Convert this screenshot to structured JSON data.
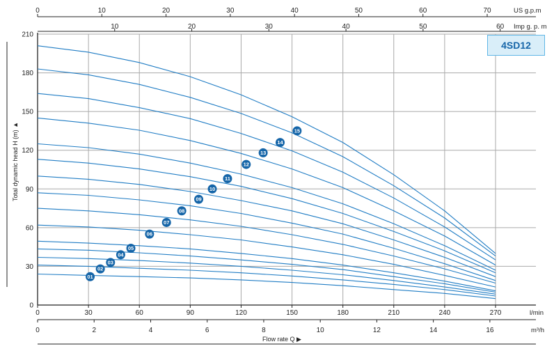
{
  "chart_data": {
    "type": "line",
    "model": "4SD12",
    "ylabel": "Total dynamic head H (m) ▲",
    "xlabel": "Flow rate Q ▶",
    "ylim": [
      0,
      210
    ],
    "y_ticks": [
      "0",
      "30",
      "60",
      "90",
      "120",
      "150",
      "180",
      "210"
    ],
    "x_axes": {
      "lmin": {
        "unit": "l/min",
        "range": [
          0,
          270
        ],
        "ticks": [
          "0",
          "30",
          "60",
          "90",
          "120",
          "150",
          "180",
          "210",
          "240",
          "270"
        ]
      },
      "m3h": {
        "unit": "m³/h",
        "range": [
          0,
          16.2
        ],
        "ticks": [
          "0",
          "2",
          "4",
          "6",
          "8",
          "10",
          "12",
          "14",
          "16"
        ]
      },
      "usgpm": {
        "unit": "US g.p.m",
        "range": [
          0,
          71.3
        ],
        "ticks": [
          "0",
          "10",
          "20",
          "30",
          "40",
          "50",
          "60",
          "70"
        ]
      },
      "impgpm": {
        "unit": "Imp g. p. m",
        "range": [
          0,
          59.4
        ],
        "ticks": [
          "10",
          "20",
          "30",
          "40",
          "50",
          "60"
        ]
      }
    },
    "grid": true,
    "series": [
      {
        "name": "01",
        "x": [
          0,
          30,
          60,
          90,
          120,
          150,
          180,
          210,
          240,
          270
        ],
        "y": [
          24,
          23,
          22,
          21,
          19.5,
          17.5,
          15,
          12,
          9,
          5
        ]
      },
      {
        "name": "02",
        "x": [
          0,
          30,
          60,
          90,
          120,
          150,
          180,
          210,
          240,
          270
        ],
        "y": [
          31,
          30,
          28.5,
          27,
          25,
          22.5,
          19.5,
          16,
          12,
          7
        ]
      },
      {
        "name": "03",
        "x": [
          0,
          30,
          60,
          90,
          120,
          150,
          180,
          210,
          240,
          270
        ],
        "y": [
          37,
          36,
          34.5,
          32.5,
          30,
          27,
          23.5,
          19,
          14,
          8.5
        ]
      },
      {
        "name": "04",
        "x": [
          0,
          30,
          60,
          90,
          120,
          150,
          180,
          210,
          240,
          270
        ],
        "y": [
          43.5,
          42.5,
          40.5,
          38,
          35,
          31.5,
          27.5,
          22,
          16.5,
          10
        ]
      },
      {
        "name": "05",
        "x": [
          0,
          30,
          60,
          90,
          120,
          150,
          180,
          210,
          240,
          270
        ],
        "y": [
          49.5,
          48,
          46,
          43.5,
          40,
          36,
          31,
          25,
          18.5,
          11
        ]
      },
      {
        "name": "06",
        "x": [
          0,
          30,
          60,
          90,
          120,
          150,
          180,
          210,
          240,
          270
        ],
        "y": [
          62,
          60.5,
          58,
          54.5,
          50.5,
          45,
          39,
          31.5,
          23,
          14
        ]
      },
      {
        "name": "07",
        "x": [
          0,
          30,
          60,
          90,
          120,
          150,
          180,
          210,
          240,
          270
        ],
        "y": [
          75,
          73,
          70,
          66,
          61,
          54.5,
          47,
          38,
          28,
          17
        ]
      },
      {
        "name": "08",
        "x": [
          0,
          30,
          60,
          90,
          120,
          150,
          180,
          210,
          240,
          270
        ],
        "y": [
          87,
          85,
          81.5,
          77,
          71,
          63.5,
          55,
          44,
          32,
          19
        ]
      },
      {
        "name": "09",
        "x": [
          0,
          30,
          60,
          90,
          120,
          150,
          180,
          210,
          240,
          270
        ],
        "y": [
          100,
          97.5,
          93.5,
          88,
          81,
          73,
          63,
          50.5,
          37,
          22
        ]
      },
      {
        "name": "10",
        "x": [
          0,
          30,
          60,
          90,
          120,
          150,
          180,
          210,
          240,
          270
        ],
        "y": [
          113,
          110,
          105.5,
          99.5,
          92,
          82.5,
          71,
          57,
          42,
          25
        ]
      },
      {
        "name": "11",
        "x": [
          0,
          30,
          60,
          90,
          120,
          150,
          180,
          210,
          240,
          270
        ],
        "y": [
          125,
          122,
          117,
          110,
          101.5,
          91,
          78.5,
          63,
          46,
          27
        ]
      },
      {
        "name": "12",
        "x": [
          0,
          30,
          60,
          90,
          120,
          150,
          180,
          210,
          240,
          270
        ],
        "y": [
          145,
          141,
          135.5,
          127.5,
          117.5,
          105.5,
          91,
          73,
          53.5,
          31
        ]
      },
      {
        "name": "13",
        "x": [
          0,
          30,
          60,
          90,
          120,
          150,
          180,
          210,
          240,
          270
        ],
        "y": [
          164,
          160,
          153,
          144.5,
          133,
          119.5,
          103,
          83,
          60.5,
          35
        ]
      },
      {
        "name": "14",
        "x": [
          0,
          30,
          60,
          90,
          120,
          150,
          180,
          210,
          240,
          270
        ],
        "y": [
          183,
          178.5,
          171,
          161,
          148.5,
          133.5,
          115,
          92.5,
          67.5,
          38
        ]
      },
      {
        "name": "15",
        "x": [
          0,
          30,
          60,
          90,
          120,
          150,
          180,
          210,
          240,
          270
        ],
        "y": [
          201,
          196,
          188,
          177,
          163,
          146,
          126,
          101,
          73,
          40
        ]
      }
    ],
    "markers": [
      {
        "label": "01",
        "x": 31,
        "y": 22
      },
      {
        "label": "02",
        "x": 37,
        "y": 28
      },
      {
        "label": "03",
        "x": 43,
        "y": 33
      },
      {
        "label": "04",
        "x": 49,
        "y": 39
      },
      {
        "label": "05",
        "x": 55,
        "y": 44
      },
      {
        "label": "06",
        "x": 66,
        "y": 55
      },
      {
        "label": "07",
        "x": 76,
        "y": 64
      },
      {
        "label": "08",
        "x": 85,
        "y": 73
      },
      {
        "label": "09",
        "x": 95,
        "y": 82
      },
      {
        "label": "10",
        "x": 103,
        "y": 90
      },
      {
        "label": "11",
        "x": 112,
        "y": 98
      },
      {
        "label": "12",
        "x": 123,
        "y": 109
      },
      {
        "label": "13",
        "x": 133,
        "y": 118
      },
      {
        "label": "14",
        "x": 143,
        "y": 126
      },
      {
        "label": "15",
        "x": 153,
        "y": 135
      }
    ]
  }
}
